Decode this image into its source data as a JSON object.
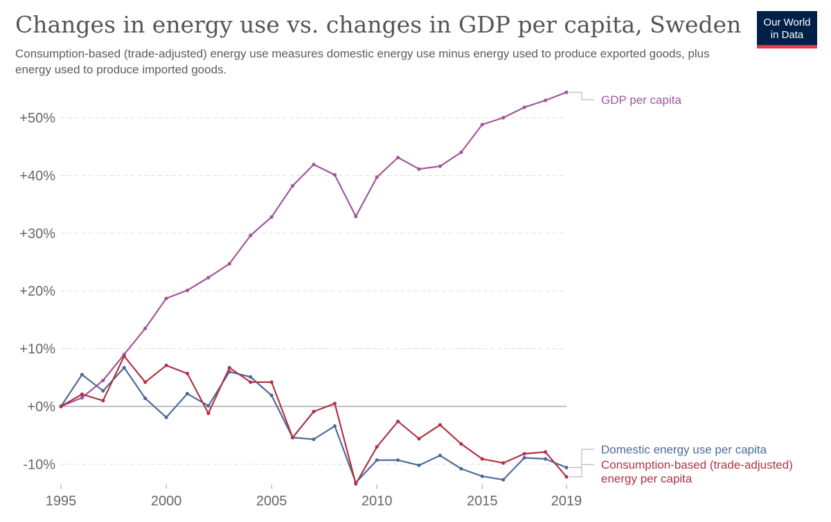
{
  "header": {
    "title": "Changes in energy use vs. changes in GDP per capita, Sweden",
    "subtitle": "Consumption-based (trade-adjusted) energy use measures domestic energy use minus energy used to produce exported goods, plus energy used to produce imported goods."
  },
  "logo": {
    "line1": "Our World",
    "line2": "in Data",
    "colors": {
      "bg": "#002147",
      "accent": "#e63946"
    }
  },
  "chart_data": {
    "type": "line",
    "title": "Changes in energy use vs. changes in GDP per capita, Sweden",
    "x": [
      1995,
      1996,
      1997,
      1998,
      1999,
      2000,
      2001,
      2002,
      2003,
      2004,
      2005,
      2006,
      2007,
      2008,
      2009,
      2010,
      2011,
      2012,
      2013,
      2014,
      2015,
      2016,
      2017,
      2018,
      2019
    ],
    "x_ticks": [
      "1995",
      "2000",
      "2005",
      "2010",
      "2015",
      "2019"
    ],
    "y_ticks": [
      "-10%",
      "+0%",
      "+10%",
      "+20%",
      "+30%",
      "+40%",
      "+50%"
    ],
    "y_tick_values": [
      -10,
      0,
      10,
      20,
      30,
      40,
      50
    ],
    "ylim": [
      -13.5,
      55
    ],
    "xlim": [
      1995,
      2019
    ],
    "grid": "horizontal dashed",
    "legend": "right, labels at line ends",
    "series": [
      {
        "name": "GDP per capita",
        "color": "#a2559c",
        "values": [
          0,
          1.5,
          4.5,
          9,
          13.5,
          18.7,
          20.1,
          22.3,
          24.7,
          29.6,
          32.8,
          38.2,
          41.9,
          40.1,
          32.9,
          39.7,
          43.1,
          41.1,
          41.6,
          44,
          48.8,
          50,
          51.8,
          53,
          54.4
        ]
      },
      {
        "name": "Domestic energy use per capita",
        "color": "#4c6a9c",
        "values": [
          0,
          5.5,
          2.7,
          6.7,
          1.4,
          -1.9,
          2.2,
          0.1,
          6,
          5.1,
          1.9,
          -5.4,
          -5.7,
          -3.4,
          -13.2,
          -9.3,
          -9.3,
          -10.2,
          -8.5,
          -10.8,
          -12.1,
          -12.7,
          -8.9,
          -9.1,
          -10.6
        ]
      },
      {
        "name": "Consumption-based (trade-adjusted) energy per capita",
        "label_lines": [
          "Consumption-based (trade-adjusted)",
          "energy per capita"
        ],
        "color": "#b13245",
        "values": [
          0,
          2.1,
          1,
          8.7,
          4.2,
          7.1,
          5.7,
          -1.2,
          6.7,
          4.2,
          4.2,
          -5.4,
          -0.9,
          0.5,
          -13.4,
          -7,
          -2.6,
          -5.6,
          -3.2,
          -6.5,
          -9.1,
          -9.8,
          -8.2,
          -7.9,
          -12.2
        ]
      }
    ]
  }
}
